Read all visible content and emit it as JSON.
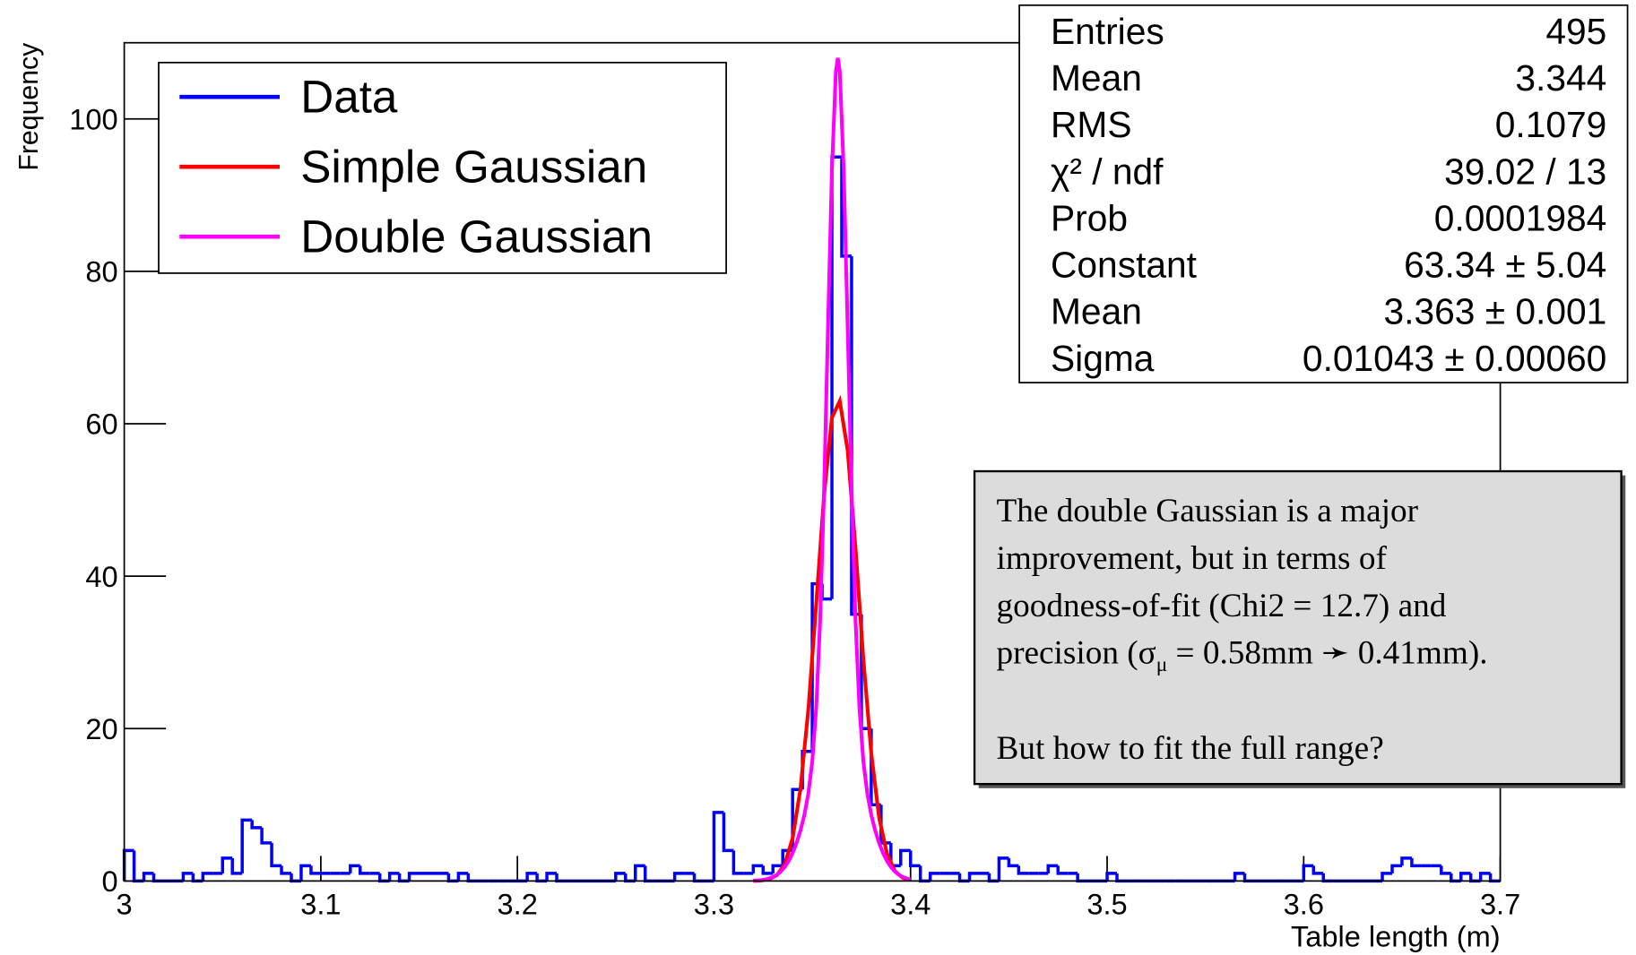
{
  "chart_data": {
    "type": "histogram",
    "xlabel": "Table length (m)",
    "ylabel": "Frequency",
    "xlim": [
      3,
      3.7
    ],
    "ylim": [
      0,
      110
    ],
    "xticks": [
      3,
      3.1,
      3.2,
      3.3,
      3.4,
      3.5,
      3.6,
      3.7
    ],
    "yticks": [
      0,
      20,
      40,
      60,
      80,
      100
    ],
    "legend": "upper left",
    "bins": [
      3,
      3.005,
      3.01,
      3.015,
      3.02,
      3.025,
      3.03,
      3.035,
      3.04,
      3.045,
      3.05,
      3.055,
      3.06,
      3.065,
      3.07,
      3.075,
      3.08,
      3.085,
      3.09,
      3.095,
      3.1,
      3.105,
      3.11,
      3.115,
      3.12,
      3.125,
      3.13,
      3.135,
      3.14,
      3.145,
      3.15,
      3.155,
      3.16,
      3.165,
      3.17,
      3.175,
      3.18,
      3.185,
      3.19,
      3.195,
      3.2,
      3.205,
      3.21,
      3.215,
      3.22,
      3.225,
      3.23,
      3.235,
      3.24,
      3.245,
      3.25,
      3.255,
      3.26,
      3.265,
      3.27,
      3.275,
      3.28,
      3.285,
      3.29,
      3.295,
      3.3,
      3.305,
      3.31,
      3.315,
      3.32,
      3.325,
      3.33,
      3.335,
      3.34,
      3.345,
      3.35,
      3.355,
      3.36,
      3.365,
      3.37,
      3.375,
      3.38,
      3.385,
      3.39,
      3.395,
      3.4,
      3.405,
      3.41,
      3.415,
      3.42,
      3.425,
      3.43,
      3.435,
      3.44,
      3.445,
      3.45,
      3.455,
      3.46,
      3.465,
      3.47,
      3.475,
      3.48,
      3.485,
      3.49,
      3.495,
      3.5,
      3.505,
      3.51,
      3.515,
      3.52,
      3.525,
      3.53,
      3.535,
      3.54,
      3.545,
      3.55,
      3.555,
      3.56,
      3.565,
      3.57,
      3.575,
      3.58,
      3.585,
      3.59,
      3.595,
      3.6,
      3.605,
      3.61,
      3.615,
      3.62,
      3.625,
      3.63,
      3.635,
      3.64,
      3.645,
      3.65,
      3.655,
      3.66,
      3.665,
      3.67,
      3.675,
      3.68,
      3.685,
      3.69,
      3.695,
      3.7
    ],
    "series": [
      {
        "name": "Data",
        "color": "#0000ff",
        "type": "histogram",
        "values": [
          4,
          0,
          1,
          0,
          0,
          0,
          1,
          0,
          1,
          1,
          3,
          1,
          8,
          7,
          5,
          2,
          1,
          0,
          2,
          1,
          1,
          1,
          1,
          2,
          1,
          1,
          0,
          1,
          0,
          1,
          1,
          1,
          1,
          0,
          1,
          0,
          0,
          0,
          0,
          0,
          0,
          1,
          0,
          1,
          0,
          0,
          0,
          0,
          0,
          0,
          1,
          0,
          2,
          0,
          0,
          0,
          1,
          1,
          0,
          0,
          9,
          4,
          1,
          1,
          2,
          1,
          2,
          4,
          12,
          17,
          39,
          37,
          95,
          82,
          35,
          20,
          10,
          5,
          2,
          4,
          2,
          0,
          1,
          1,
          1,
          0,
          1,
          1,
          0,
          3,
          2,
          1,
          1,
          1,
          2,
          1,
          1,
          0,
          0,
          0,
          1,
          0,
          0,
          0,
          0,
          0,
          0,
          0,
          0,
          0,
          0,
          0,
          0,
          1,
          0,
          0,
          0,
          0,
          0,
          0,
          2,
          1,
          0,
          0,
          0,
          0,
          0,
          0,
          1,
          2,
          3,
          2,
          2,
          2,
          1,
          0,
          1,
          0,
          1,
          0
        ]
      },
      {
        "name": "Simple Gaussian",
        "color": "#ff0000",
        "type": "line",
        "x": [
          3.32,
          3.324,
          3.328,
          3.332,
          3.336,
          3.34,
          3.344,
          3.348,
          3.352,
          3.356,
          3.36,
          3.364,
          3.368,
          3.372,
          3.376,
          3.38,
          3.384,
          3.388,
          3.392,
          3.396,
          3.4
        ],
        "values": [
          0.01,
          0.06,
          0.23,
          0.76,
          2.2,
          5.6,
          12.1,
          22.5,
          36.3,
          50.6,
          60.8,
          63.0,
          56.5,
          43.7,
          29.1,
          16.8,
          8.3,
          3.6,
          1.3,
          0.42,
          0.12
        ]
      },
      {
        "name": "Double Gaussian",
        "color": "#ff00ff",
        "type": "line",
        "x": [
          3.32,
          3.322,
          3.324,
          3.326,
          3.328,
          3.33,
          3.332,
          3.334,
          3.336,
          3.338,
          3.34,
          3.342,
          3.344,
          3.346,
          3.348,
          3.35,
          3.352,
          3.354,
          3.356,
          3.358,
          3.36,
          3.362,
          3.363,
          3.364,
          3.366,
          3.368,
          3.37,
          3.372,
          3.374,
          3.376,
          3.378,
          3.38,
          3.382,
          3.384,
          3.386,
          3.388,
          3.39,
          3.392,
          3.394,
          3.396,
          3.398,
          3.4
        ],
        "values": [
          0.04,
          0.07,
          0.12,
          0.2,
          0.33,
          0.52,
          0.82,
          1.24,
          1.83,
          2.62,
          3.66,
          4.99,
          6.63,
          8.69,
          11.47,
          15.68,
          22.68,
          34.19,
          51.3,
          72.7,
          93.3,
          106.2,
          108,
          106.2,
          93.3,
          72.7,
          51.3,
          34.19,
          22.68,
          15.68,
          11.47,
          8.69,
          6.63,
          4.99,
          3.66,
          2.62,
          1.83,
          1.24,
          0.82,
          0.52,
          0.33,
          0.2
        ]
      }
    ]
  },
  "stats_box": {
    "rows": [
      [
        "Entries",
        "495"
      ],
      [
        "Mean",
        "3.344"
      ],
      [
        "RMS",
        "0.1079"
      ],
      [
        "χ² / ndf",
        "39.02 / 13"
      ],
      [
        "Prob",
        "0.0001984"
      ],
      [
        "Constant",
        "63.34 ± 5.04"
      ],
      [
        "Mean",
        "3.363 ± 0.001"
      ],
      [
        "Sigma",
        "0.01043 ± 0.00060"
      ]
    ]
  },
  "note": {
    "lines": [
      "The double Gaussian is a major",
      "improvement, but in terms of",
      "goodness-of-fit (Chi2 = 12.7) and"
    ],
    "line4": [
      "precision (σ",
      "μ",
      " = 0.58mm ➛ 0.41mm)."
    ],
    "last": "But how to fit the full range?"
  }
}
